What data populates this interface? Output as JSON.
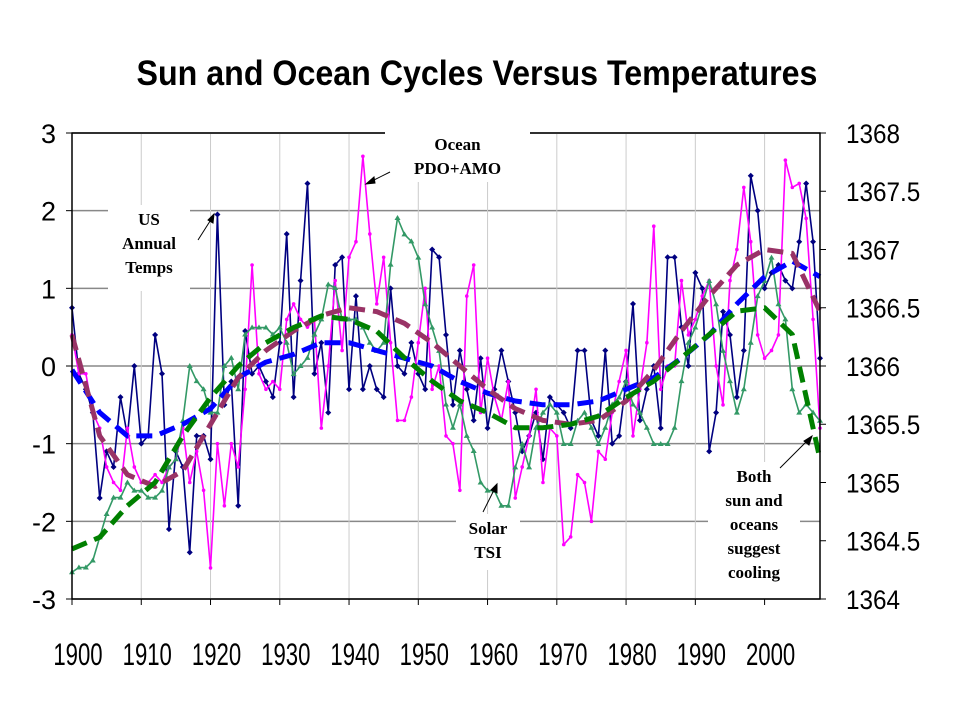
{
  "chart_data": {
    "type": "line",
    "title": "Sun and Ocean Cycles Versus Temperatures",
    "x": [
      1900,
      1901,
      1902,
      1903,
      1904,
      1905,
      1906,
      1907,
      1908,
      1909,
      1910,
      1911,
      1912,
      1913,
      1914,
      1915,
      1916,
      1917,
      1918,
      1919,
      1920,
      1921,
      1922,
      1923,
      1924,
      1925,
      1926,
      1927,
      1928,
      1929,
      1930,
      1931,
      1932,
      1933,
      1934,
      1935,
      1936,
      1937,
      1938,
      1939,
      1940,
      1941,
      1942,
      1943,
      1944,
      1945,
      1946,
      1947,
      1948,
      1949,
      1950,
      1951,
      1952,
      1953,
      1954,
      1955,
      1956,
      1957,
      1958,
      1959,
      1960,
      1961,
      1962,
      1963,
      1964,
      1965,
      1966,
      1967,
      1968,
      1969,
      1970,
      1971,
      1972,
      1973,
      1974,
      1975,
      1976,
      1977,
      1978,
      1979,
      1980,
      1981,
      1982,
      1983,
      1984,
      1985,
      1986,
      1987,
      1988,
      1989,
      1990,
      1991,
      1992,
      1993,
      1994,
      1995,
      1996,
      1997,
      1998,
      1999,
      2000,
      2001,
      2002,
      2003,
      2004,
      2005,
      2006,
      2007,
      2008
    ],
    "xlim": [
      1900,
      2008
    ],
    "xticks": [
      1900,
      1910,
      1920,
      1930,
      1940,
      1950,
      1960,
      1970,
      1980,
      1990,
      2000
    ],
    "ylim": [
      -3,
      3
    ],
    "yticks": [
      -3,
      -2,
      -1,
      0,
      1,
      2,
      3
    ],
    "y2lim": [
      1364,
      1368
    ],
    "y2ticks": [
      1364,
      1364.5,
      1365,
      1365.5,
      1366,
      1366.5,
      1367,
      1367.5,
      1368
    ],
    "grid": true,
    "series": [
      {
        "color": "#000080",
        "marker": "diamond",
        "values": [
          0.75,
          -0.1,
          -0.3,
          -0.6,
          -1.7,
          -1.1,
          -1.3,
          -0.4,
          -0.9,
          0,
          -1.0,
          -0.9,
          0.4,
          -0.1,
          -2.1,
          -1.1,
          -1.3,
          -2.4,
          -0.9,
          -0.9,
          -1.2,
          1.95,
          -0.5,
          -0.2,
          -1.8,
          0.45,
          -0.1,
          0,
          -0.2,
          -0.4,
          0.3,
          1.7,
          -0.4,
          1.1,
          2.35,
          -0.1,
          0.3,
          -0.6,
          1.3,
          1.4,
          -0.3,
          0.9,
          -0.3,
          0,
          -0.3,
          -0.4,
          1.0,
          0,
          -0.1,
          0.3,
          -0.1,
          -0.3,
          1.5,
          1.4,
          0.4,
          -0.5,
          0.2,
          -0.3,
          -0.7,
          0.1,
          -0.8,
          -0.3,
          0.2,
          -0.2,
          -0.6,
          -1.1,
          -0.9,
          -0.6,
          -1.2,
          -0.4,
          -0.5,
          -0.6,
          -0.8,
          0.2,
          0.2,
          -0.7,
          -0.9,
          0.2,
          -1.0,
          -0.9,
          -0.2,
          0.8,
          -0.7,
          -0.3,
          0,
          -0.8,
          1.4,
          1.4,
          0.5,
          0,
          1.2,
          1.0,
          -1.1,
          -0.6,
          0.7,
          0.4,
          -0.4,
          0.2,
          2.45,
          2.0,
          1.0,
          1.2,
          1.3,
          1.1,
          1.0,
          1.6,
          2.35,
          1.6,
          0.1
        ]
      },
      {
        "color": "#ff00ff",
        "marker": "dot",
        "values": [
          0.4,
          -0.1,
          -0.1,
          -0.6,
          -0.8,
          -1.3,
          -1.5,
          -1.6,
          -0.8,
          -1.3,
          -1.5,
          -1.5,
          -1.4,
          -1.5,
          -1.3,
          -1.2,
          -0.8,
          -1.5,
          -1.1,
          -1.6,
          -2.6,
          -1.0,
          -1.8,
          -1.0,
          -1.3,
          -0.3,
          1.3,
          -0.1,
          -0.3,
          -0.2,
          -0.3,
          0.6,
          0.8,
          0.6,
          0.5,
          0.6,
          -0.8,
          0,
          1.1,
          0.2,
          1.4,
          1.6,
          2.7,
          1.7,
          0.8,
          1.4,
          0.3,
          -0.7,
          -0.7,
          -0.4,
          0.3,
          1.0,
          -0.3,
          0,
          -0.9,
          -1.0,
          -1.6,
          0.9,
          1.3,
          -0.6,
          0.1,
          -0.4,
          -0.7,
          -0.2,
          -1.7,
          -1.3,
          -0.9,
          -0.3,
          -1.5,
          -0.8,
          -0.9,
          -2.3,
          -2.2,
          -1.4,
          -1.5,
          -2.0,
          -1.1,
          -1.2,
          -0.6,
          -0.2,
          0.2,
          -0.9,
          -0.3,
          0.3,
          1.8,
          -0.3,
          0,
          0,
          1.1,
          0.4,
          0.6,
          0.9,
          1.1,
          0,
          -0.5,
          1.1,
          1.5,
          2.3,
          1.6,
          0.4,
          0.1,
          0.2,
          0.4,
          2.65,
          2.3,
          2.35,
          1.9,
          0.6,
          -0.8
        ]
      },
      {
        "color": "#339966",
        "marker": "triangle",
        "axis": "y2",
        "values": [
          1364.23,
          1364.27,
          1364.27,
          1364.33,
          1364.53,
          1364.73,
          1364.87,
          1364.87,
          1365.0,
          1364.93,
          1364.93,
          1364.87,
          1364.87,
          1364.93,
          1365.13,
          1365.2,
          1365.53,
          1366,
          1365.87,
          1365.8,
          1365.6,
          1365.6,
          1366,
          1366.07,
          1365.8,
          1366.27,
          1366.33,
          1366.33,
          1366.33,
          1366.27,
          1366.33,
          1366.2,
          1365.93,
          1366,
          1366.07,
          1366.27,
          1366.4,
          1366.7,
          1366.67,
          1366.4,
          1366.4,
          1366.4,
          1366.33,
          1366.2,
          1366.13,
          1366.2,
          1366.87,
          1367.27,
          1367.13,
          1367.07,
          1366.93,
          1366.53,
          1366.33,
          1366.13,
          1365.67,
          1365.47,
          1365.67,
          1365.4,
          1365.27,
          1365.0,
          1364.93,
          1364.93,
          1364.8,
          1364.8,
          1365.13,
          1365.33,
          1365.13,
          1365.47,
          1365.6,
          1365.67,
          1365.6,
          1365.33,
          1365.33,
          1365.53,
          1365.6,
          1365.47,
          1365.33,
          1365.47,
          1365.67,
          1365.73,
          1365.87,
          1365.67,
          1365.6,
          1365.47,
          1365.33,
          1365.33,
          1365.33,
          1365.47,
          1365.87,
          1366.2,
          1366.33,
          1366.53,
          1366.73,
          1366.53,
          1366.13,
          1365.87,
          1365.6,
          1365.8,
          1366.2,
          1366.6,
          1366.73,
          1366.93,
          1366.53,
          1366.4,
          1365.8,
          1365.6,
          1365.67,
          1365.6,
          1365.53
        ]
      },
      {
        "color": "#0000ff",
        "dashed": true,
        "x": [
          1900,
          1904,
          1908,
          1912,
          1916,
          1920,
          1924,
          1928,
          1932,
          1936,
          1940,
          1944,
          1948,
          1952,
          1956,
          1960,
          1964,
          1968,
          1972,
          1976,
          1980,
          1984,
          1988,
          1992,
          1996,
          2000,
          2004,
          2008
        ],
        "values": [
          -0.05,
          -0.6,
          -0.9,
          -0.9,
          -0.75,
          -0.55,
          -0.15,
          0.05,
          0.15,
          0.3,
          0.3,
          0.2,
          0.1,
          0,
          -0.2,
          -0.35,
          -0.45,
          -0.5,
          -0.5,
          -0.45,
          -0.3,
          -0.15,
          0.1,
          0.4,
          0.8,
          1.15,
          1.35,
          1.15
        ]
      },
      {
        "color": "#993366",
        "dashed": true,
        "x": [
          1900,
          1904,
          1908,
          1912,
          1916,
          1920,
          1924,
          1928,
          1932,
          1936,
          1940,
          1944,
          1948,
          1952,
          1956,
          1960,
          1964,
          1968,
          1972,
          1976,
          1980,
          1984,
          1988,
          1992,
          1996,
          2000,
          2004,
          2008
        ],
        "values": [
          0.4,
          -0.9,
          -1.4,
          -1.55,
          -1.35,
          -0.75,
          -0.15,
          0.2,
          0.45,
          0.65,
          0.75,
          0.7,
          0.55,
          0.3,
          0,
          -0.3,
          -0.55,
          -0.7,
          -0.75,
          -0.7,
          -0.45,
          -0.05,
          0.45,
          0.9,
          1.3,
          1.5,
          1.45,
          0.7
        ]
      },
      {
        "color": "#008000",
        "dashed": true,
        "axis": "y2",
        "x": [
          1900,
          1904,
          1908,
          1912,
          1916,
          1920,
          1924,
          1928,
          1932,
          1936,
          1940,
          1944,
          1948,
          1952,
          1956,
          1960,
          1964,
          1968,
          1972,
          1976,
          1980,
          1984,
          1988,
          1992,
          1996,
          2000,
          2004,
          2008
        ],
        "values": [
          1364.43,
          1364.53,
          1364.8,
          1365.0,
          1365.4,
          1365.73,
          1366.0,
          1366.2,
          1366.33,
          1366.43,
          1366.4,
          1366.3,
          1366.07,
          1365.87,
          1365.7,
          1365.6,
          1365.47,
          1365.47,
          1365.5,
          1365.57,
          1365.73,
          1365.87,
          1366.07,
          1366.27,
          1366.47,
          1366.5,
          1366.27,
          1365.2
        ]
      }
    ],
    "annotations": [
      {
        "lines": [
          "Ocean",
          "PDO+AMO"
        ]
      },
      {
        "lines": [
          "US",
          "Annual",
          "Temps"
        ]
      },
      {
        "lines": [
          "Solar",
          "TSI"
        ]
      },
      {
        "lines": [
          "Both",
          "sun and",
          "oceans",
          "suggest",
          "cooling"
        ]
      }
    ]
  }
}
